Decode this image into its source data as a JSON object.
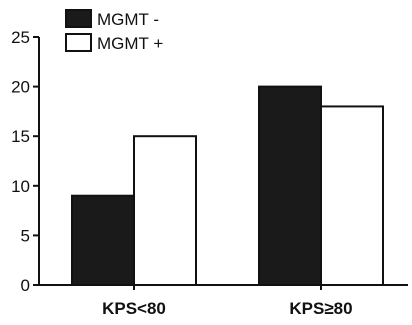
{
  "chart_data": {
    "type": "bar",
    "categories": [
      "KPS<80",
      "KPS≥80"
    ],
    "series": [
      {
        "name": "MGMT -",
        "values": [
          9,
          20
        ],
        "color": "#1a1a1a"
      },
      {
        "name": "MGMT +",
        "values": [
          15,
          18
        ],
        "color": "#ffffff"
      }
    ],
    "title": "",
    "xlabel": "",
    "ylabel": "",
    "ylim": [
      0,
      25
    ],
    "yticks": [
      0,
      5,
      10,
      15,
      20,
      25
    ],
    "grid": false,
    "legend_position": "top-left"
  }
}
